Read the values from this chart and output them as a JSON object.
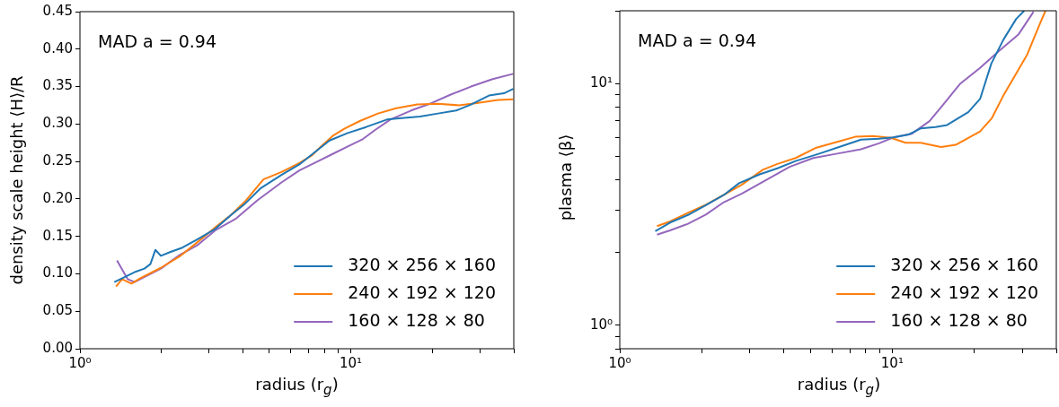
{
  "chart_data": [
    {
      "type": "line",
      "xlabel": "radius (r$_{g}$)",
      "ylabel": "density scale height ⟨H⟩/R",
      "annotations": [
        "MAD a = 0.94"
      ],
      "log": "x",
      "legend": "bottom right",
      "marker": "none",
      "line_style": "solid",
      "grid": false,
      "xlim": [
        1,
        40
      ],
      "xticks": [
        {
          "value": 1,
          "label": "10⁰"
        },
        {
          "value": 2,
          "label": null
        },
        {
          "value": 3,
          "label": null
        },
        {
          "value": 4,
          "label": null
        },
        {
          "value": 5,
          "label": null
        },
        {
          "value": 6,
          "label": null
        },
        {
          "value": 7,
          "label": null
        },
        {
          "value": 8,
          "label": null
        },
        {
          "value": 9,
          "label": null
        },
        {
          "value": 10,
          "label": "10¹"
        },
        {
          "value": 20,
          "label": null
        },
        {
          "value": 30,
          "label": null
        },
        {
          "value": 40,
          "label": null
        }
      ],
      "ylim": [
        0,
        0.45
      ],
      "yticks": [
        {
          "value": 0,
          "label": "0.00"
        },
        {
          "value": 0.05,
          "label": "0.05"
        },
        {
          "value": 0.1,
          "label": "0.10"
        },
        {
          "value": 0.15,
          "label": "0.15"
        },
        {
          "value": 0.2,
          "label": "0.20"
        },
        {
          "value": 0.25,
          "label": "0.25"
        },
        {
          "value": 0.3,
          "label": "0.30"
        },
        {
          "value": 0.35,
          "label": "0.35"
        },
        {
          "value": 0.4,
          "label": "0.40"
        },
        {
          "value": 0.45,
          "label": "0.45"
        }
      ],
      "series": [
        {
          "name": "320 × 256 × 160",
          "color": "#1f77b4",
          "x": [
            1.34,
            1.45,
            1.61,
            1.73,
            1.82,
            1.9,
            1.99,
            2.15,
            2.39,
            2.71,
            3.16,
            3.6,
            4.08,
            4.64,
            5.55,
            6.46,
            7.35,
            8.35,
            9.75,
            11.4,
            13.6,
            15.4,
            18,
            21,
            24.5,
            27.8,
            32.4,
            36.8,
            39.8
          ],
          "values": [
            0.089,
            0.095,
            0.103,
            0.107,
            0.113,
            0.132,
            0.124,
            0.129,
            0.135,
            0.146,
            0.16,
            0.178,
            0.194,
            0.214,
            0.232,
            0.246,
            0.262,
            0.278,
            0.288,
            0.296,
            0.306,
            0.308,
            0.31,
            0.314,
            0.318,
            0.326,
            0.338,
            0.341,
            0.347
          ]
        },
        {
          "name": "240 × 192 × 120",
          "color": "#ff7f0e",
          "x": [
            1.36,
            1.43,
            1.55,
            1.67,
            1.99,
            2.33,
            2.71,
            3.16,
            3.6,
            4.08,
            4.76,
            5.55,
            6.46,
            7.18,
            7.76,
            8.57,
            9.5,
            10.8,
            12.6,
            14.7,
            17.6,
            21,
            25.1,
            29.2,
            35,
            39.8
          ],
          "values": [
            0.083,
            0.093,
            0.087,
            0.094,
            0.108,
            0.123,
            0.142,
            0.162,
            0.178,
            0.197,
            0.226,
            0.236,
            0.248,
            0.258,
            0.27,
            0.284,
            0.294,
            0.304,
            0.314,
            0.321,
            0.326,
            0.327,
            0.325,
            0.328,
            0.332,
            0.333
          ]
        },
        {
          "name": "160 × 128 × 80",
          "color": "#9467bd",
          "x": [
            1.37,
            1.5,
            1.59,
            1.8,
            1.99,
            2.33,
            2.71,
            3.16,
            3.78,
            4.52,
            5.55,
            6.46,
            7.54,
            8.57,
            9.75,
            11.1,
            12.3,
            14,
            16.7,
            19.9,
            23.3,
            27.8,
            33.4,
            39.8
          ],
          "values": [
            0.118,
            0.093,
            0.089,
            0.099,
            0.107,
            0.125,
            0.138,
            0.158,
            0.174,
            0.198,
            0.222,
            0.238,
            0.25,
            0.26,
            0.27,
            0.28,
            0.292,
            0.306,
            0.318,
            0.328,
            0.339,
            0.35,
            0.36,
            0.367
          ]
        }
      ]
    },
    {
      "type": "line",
      "xlabel": "radius (r$_{g}$)",
      "ylabel": "plasma ⟨β⟩",
      "annotations": [
        "MAD a = 0.94"
      ],
      "log": "xy",
      "legend": "bottom right",
      "marker": "none",
      "line_style": "solid",
      "grid": false,
      "xlim": [
        1,
        40
      ],
      "xticks": [
        {
          "value": 1,
          "label": "10⁰"
        },
        {
          "value": 2,
          "label": null
        },
        {
          "value": 3,
          "label": null
        },
        {
          "value": 4,
          "label": null
        },
        {
          "value": 5,
          "label": null
        },
        {
          "value": 6,
          "label": null
        },
        {
          "value": 7,
          "label": null
        },
        {
          "value": 8,
          "label": null
        },
        {
          "value": 9,
          "label": null
        },
        {
          "value": 10,
          "label": "10¹"
        },
        {
          "value": 20,
          "label": null
        },
        {
          "value": 30,
          "label": null
        },
        {
          "value": 40,
          "label": null
        }
      ],
      "ylim": [
        0.8,
        20
      ],
      "yticks": [
        {
          "value": 0.8,
          "label": null
        },
        {
          "value": 0.9,
          "label": null
        },
        {
          "value": 1,
          "label": "10⁰"
        },
        {
          "value": 2,
          "label": null
        },
        {
          "value": 3,
          "label": null
        },
        {
          "value": 4,
          "label": null
        },
        {
          "value": 5,
          "label": null
        },
        {
          "value": 6,
          "label": null
        },
        {
          "value": 7,
          "label": null
        },
        {
          "value": 8,
          "label": null
        },
        {
          "value": 9,
          "label": null
        },
        {
          "value": 10,
          "label": "10¹"
        },
        {
          "value": 20,
          "label": null
        }
      ],
      "series": [
        {
          "name": "320 × 256 × 160",
          "color": "#1f77b4",
          "x": [
            1.35,
            1.53,
            1.78,
            2.07,
            2.41,
            2.74,
            3.26,
            3.79,
            4.42,
            5.4,
            6.6,
            7.68,
            8.94,
            10.1,
            11.5,
            12.7,
            14.4,
            15.9,
            19,
            21,
            23.1,
            25.6,
            28.5,
            30.5
          ],
          "values": [
            2.45,
            2.66,
            2.86,
            3.14,
            3.46,
            3.87,
            4.21,
            4.46,
            4.78,
            5.13,
            5.53,
            5.86,
            5.91,
            5.99,
            6.16,
            6.52,
            6.61,
            6.74,
            7.61,
            8.63,
            12.1,
            15.2,
            18.5,
            20
          ]
        },
        {
          "name": "240 × 192 × 120",
          "color": "#ff7f0e",
          "x": [
            1.37,
            1.53,
            1.78,
            2.07,
            2.41,
            2.81,
            3.35,
            3.79,
            4.42,
            5.27,
            6.28,
            7.31,
            8.5,
            9.88,
            11.2,
            12.7,
            15.1,
            17.1,
            21,
            23.2,
            25.7,
            28.5,
            31.3,
            34.7,
            36.5
          ],
          "values": [
            2.57,
            2.69,
            2.92,
            3.15,
            3.46,
            3.82,
            4.4,
            4.65,
            4.92,
            5.43,
            5.74,
            6.02,
            6.06,
            5.96,
            5.69,
            5.69,
            5.46,
            5.58,
            6.34,
            7.19,
            9.01,
            11,
            13.2,
            17.5,
            20
          ]
        },
        {
          "name": "160 × 128 × 80",
          "color": "#9467bd",
          "x": [
            1.37,
            1.53,
            1.78,
            2.07,
            2.41,
            2.81,
            3.43,
            4.2,
            5.13,
            6.28,
            7.68,
            8.94,
            10.1,
            11.8,
            13.7,
            15.2,
            17.7,
            21,
            24.4,
            29.1,
            33
          ],
          "values": [
            2.37,
            2.47,
            2.63,
            2.87,
            3.23,
            3.51,
            3.98,
            4.52,
            4.92,
            5.13,
            5.35,
            5.66,
            5.99,
            6.2,
            6.99,
            8.05,
            9.95,
            11.6,
            13.5,
            16,
            19.8
          ]
        }
      ]
    }
  ]
}
